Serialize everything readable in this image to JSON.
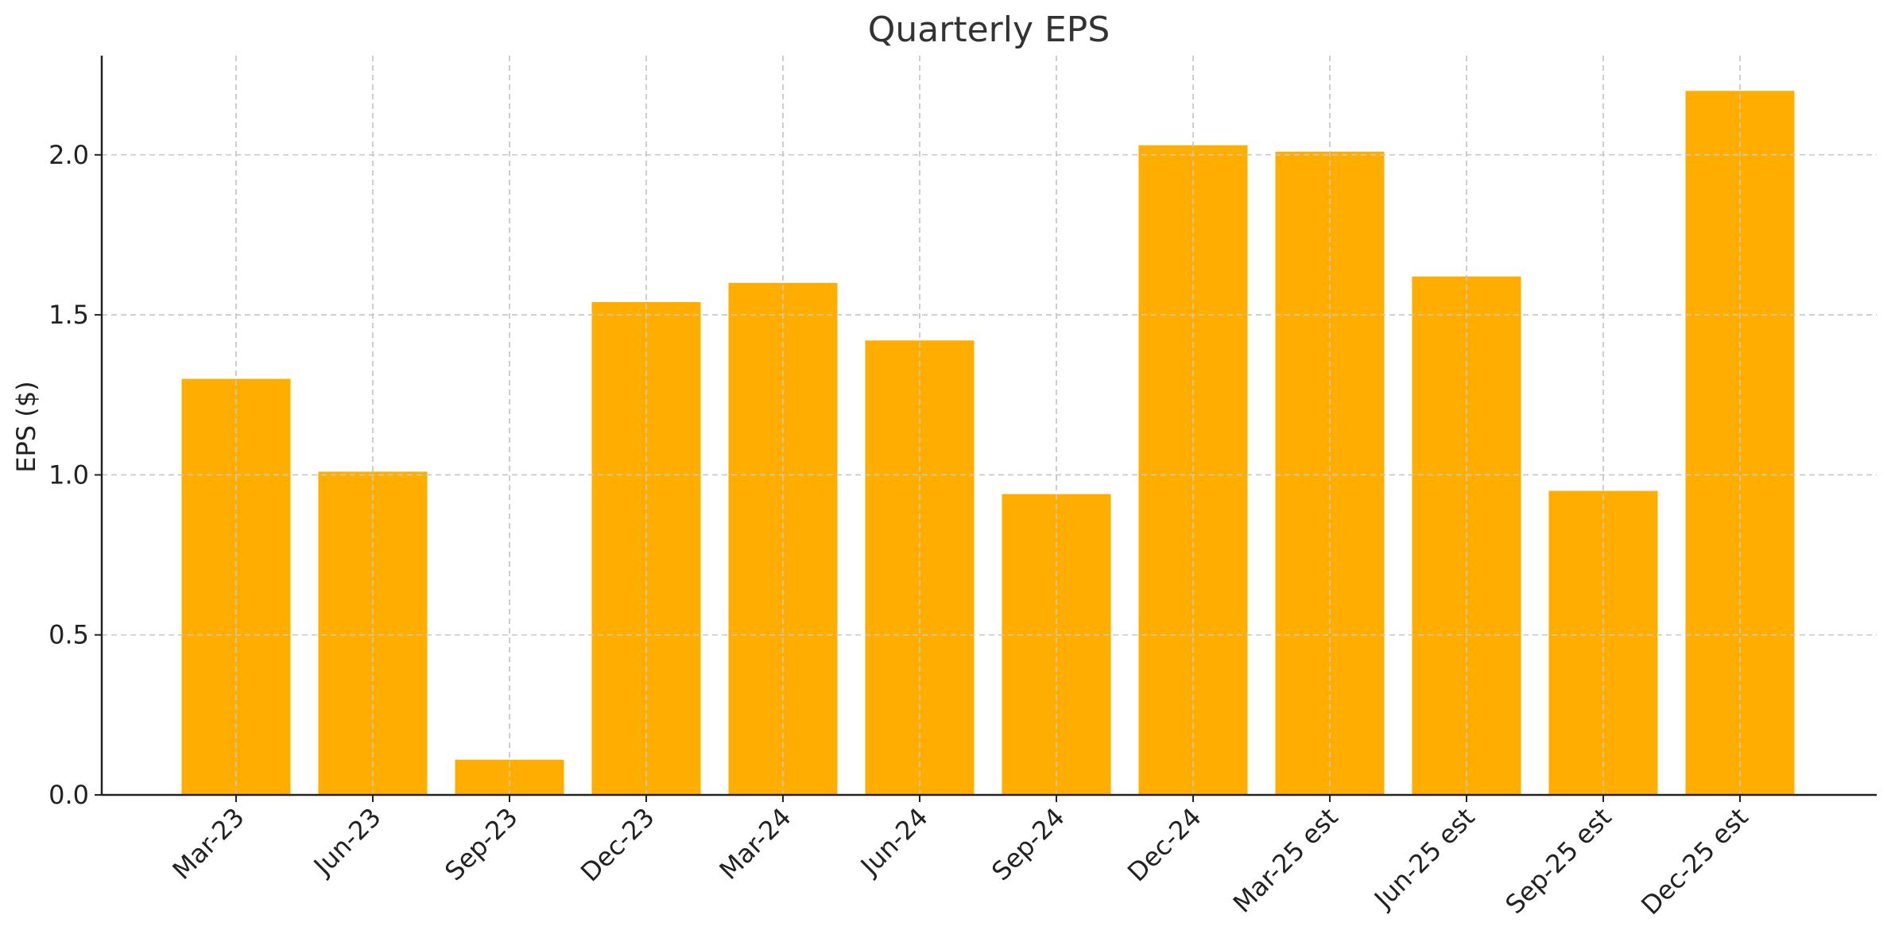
{
  "chart_data": {
    "type": "bar",
    "title": "Quarterly EPS",
    "xlabel": "",
    "ylabel": "EPS ($)",
    "categories": [
      "Mar-23",
      "Jun-23",
      "Sep-23",
      "Dec-23",
      "Mar-24",
      "Jun-24",
      "Sep-24",
      "Dec-24",
      "Mar-25 est",
      "Jun-25 est",
      "Sep-25 est",
      "Dec-25 est"
    ],
    "values": [
      1.3,
      1.01,
      0.11,
      1.54,
      1.6,
      1.42,
      0.94,
      2.03,
      2.01,
      1.62,
      0.95,
      2.2
    ],
    "ylim": [
      0,
      2.31
    ],
    "yticks": [
      "0.0",
      "0.5",
      "1.0",
      "1.5",
      "2.0"
    ],
    "ytick_values": [
      0,
      0.5,
      1.0,
      1.5,
      2.0
    ],
    "bar_color": "#FFAE00",
    "grid": true,
    "legend": "none"
  }
}
